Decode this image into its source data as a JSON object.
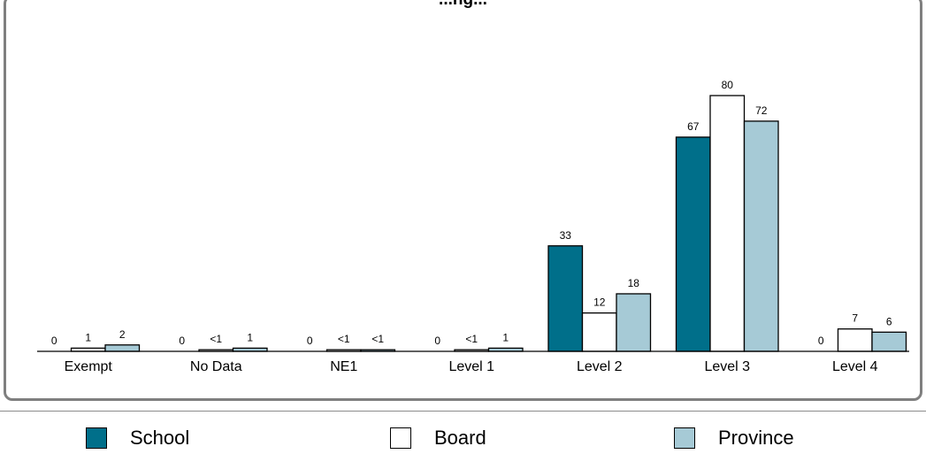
{
  "chart_data": {
    "type": "bar",
    "title": "...ng...",
    "categories": [
      "Exempt",
      "No Data",
      "NE1",
      "Level 1",
      "Level 2",
      "Level 3",
      "Level 4"
    ],
    "series": [
      {
        "name": "School",
        "color": "#006f8a",
        "values": [
          0,
          0,
          0,
          0,
          33,
          67,
          0
        ],
        "labels": [
          "0",
          "0",
          "0",
          "0",
          "33",
          "67",
          "0"
        ]
      },
      {
        "name": "Board",
        "color": "#ffffff",
        "values": [
          1,
          0.5,
          0.5,
          0.5,
          12,
          80,
          7
        ],
        "labels": [
          "1",
          "<1",
          "<1",
          "<1",
          "12",
          "80",
          "7"
        ]
      },
      {
        "name": "Province",
        "color": "#a6cad6",
        "values": [
          2,
          1,
          0.5,
          1,
          18,
          72,
          6
        ],
        "labels": [
          "2",
          "1",
          "<1",
          "1",
          "18",
          "72",
          "6"
        ]
      }
    ],
    "ylim": [
      0,
      80
    ],
    "legend_position": "bottom",
    "grid": false
  }
}
